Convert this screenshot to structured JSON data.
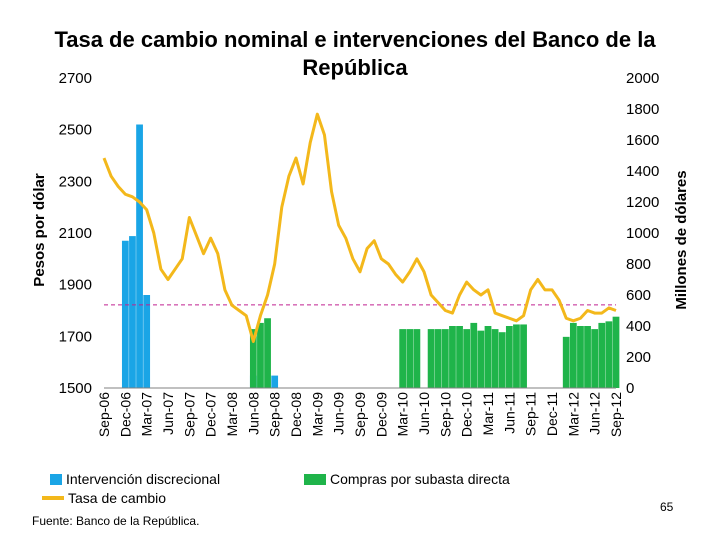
{
  "chart_data": {
    "type": "bar+line",
    "title": "Tasa de cambio nominal e intervenciones del Banco de la República",
    "ylabel_left": "Pesos por dólar",
    "ylabel_right": "Millones de dólares",
    "ylim_left": [
      1500,
      2700
    ],
    "yticks_left": [
      1500,
      1700,
      1900,
      2100,
      2300,
      2500,
      2700
    ],
    "ylim_right": [
      0,
      2000
    ],
    "yticks_right": [
      0,
      200,
      400,
      600,
      800,
      1000,
      1200,
      1400,
      1600,
      1800,
      2000
    ],
    "categories": [
      "Sep-06",
      "Dec-06",
      "Mar-07",
      "Jun-07",
      "Sep-07",
      "Dec-07",
      "Mar-08",
      "Jun-08",
      "Sep-08",
      "Dec-08",
      "Mar-09",
      "Jun-09",
      "Sep-09",
      "Dec-09",
      "Mar-10",
      "Jun-10",
      "Sep-10",
      "Dec-10",
      "Mar-11",
      "Jun-11",
      "Sep-11",
      "Dec-11",
      "Mar-12",
      "Jun-12",
      "Sep-12"
    ],
    "reference_line_left": 1822,
    "grid": false,
    "legend_position": "bottom",
    "series": [
      {
        "name": "Intervención discrecional",
        "kind": "bar",
        "axis": "right",
        "color": "#1aa5e6",
        "points": [
          [
            "2006-12-01",
            950
          ],
          [
            "2007-01-01",
            980
          ],
          [
            "2007-02-01",
            1700
          ],
          [
            "2007-03-01",
            600
          ],
          [
            "2008-06-01",
            80
          ],
          [
            "2008-09-01",
            80
          ]
        ]
      },
      {
        "name": "Compras por subasta directa",
        "kind": "bar",
        "axis": "right",
        "color": "#1fb44a",
        "points": [
          [
            "2008-06-01",
            380
          ],
          [
            "2008-07-01",
            420
          ],
          [
            "2008-08-01",
            450
          ],
          [
            "2010-03-01",
            380
          ],
          [
            "2010-04-01",
            380
          ],
          [
            "2010-05-01",
            380
          ],
          [
            "2010-07-01",
            380
          ],
          [
            "2010-08-01",
            380
          ],
          [
            "2010-09-01",
            380
          ],
          [
            "2010-10-01",
            400
          ],
          [
            "2010-11-01",
            400
          ],
          [
            "2010-12-01",
            380
          ],
          [
            "2011-01-01",
            420
          ],
          [
            "2011-02-01",
            370
          ],
          [
            "2011-03-01",
            400
          ],
          [
            "2011-04-01",
            380
          ],
          [
            "2011-05-01",
            360
          ],
          [
            "2011-06-01",
            400
          ],
          [
            "2011-07-01",
            410
          ],
          [
            "2011-08-01",
            410
          ],
          [
            "2012-02-01",
            330
          ],
          [
            "2012-03-01",
            420
          ],
          [
            "2012-04-01",
            400
          ],
          [
            "2012-05-01",
            400
          ],
          [
            "2012-06-01",
            380
          ],
          [
            "2012-07-01",
            420
          ],
          [
            "2012-08-01",
            430
          ],
          [
            "2012-09-01",
            460
          ]
        ]
      },
      {
        "name": "Tasa de cambio",
        "kind": "line",
        "axis": "left",
        "color": "#f3b81b",
        "points": [
          [
            "2006-09-01",
            2390
          ],
          [
            "2006-10-01",
            2320
          ],
          [
            "2006-11-01",
            2280
          ],
          [
            "2006-12-01",
            2250
          ],
          [
            "2007-01-01",
            2240
          ],
          [
            "2007-02-01",
            2220
          ],
          [
            "2007-03-01",
            2190
          ],
          [
            "2007-04-01",
            2100
          ],
          [
            "2007-05-01",
            1960
          ],
          [
            "2007-06-01",
            1920
          ],
          [
            "2007-07-01",
            1960
          ],
          [
            "2007-08-01",
            2000
          ],
          [
            "2007-09-01",
            2160
          ],
          [
            "2007-10-01",
            2090
          ],
          [
            "2007-11-01",
            2020
          ],
          [
            "2007-12-01",
            2080
          ],
          [
            "2008-01-01",
            2020
          ],
          [
            "2008-02-01",
            1880
          ],
          [
            "2008-03-01",
            1820
          ],
          [
            "2008-04-01",
            1800
          ],
          [
            "2008-05-01",
            1780
          ],
          [
            "2008-06-01",
            1680
          ],
          [
            "2008-07-01",
            1780
          ],
          [
            "2008-08-01",
            1860
          ],
          [
            "2008-09-01",
            1980
          ],
          [
            "2008-10-01",
            2200
          ],
          [
            "2008-11-01",
            2320
          ],
          [
            "2008-12-01",
            2390
          ],
          [
            "2009-01-01",
            2290
          ],
          [
            "2009-02-01",
            2450
          ],
          [
            "2009-03-01",
            2560
          ],
          [
            "2009-04-01",
            2480
          ],
          [
            "2009-05-01",
            2260
          ],
          [
            "2009-06-01",
            2130
          ],
          [
            "2009-07-01",
            2080
          ],
          [
            "2009-08-01",
            2000
          ],
          [
            "2009-09-01",
            1950
          ],
          [
            "2009-10-01",
            2040
          ],
          [
            "2009-11-01",
            2070
          ],
          [
            "2009-12-01",
            2000
          ],
          [
            "2010-01-01",
            1980
          ],
          [
            "2010-02-01",
            1940
          ],
          [
            "2010-03-01",
            1910
          ],
          [
            "2010-04-01",
            1950
          ],
          [
            "2010-05-01",
            2000
          ],
          [
            "2010-06-01",
            1950
          ],
          [
            "2010-07-01",
            1860
          ],
          [
            "2010-08-01",
            1830
          ],
          [
            "2010-09-01",
            1800
          ],
          [
            "2010-10-01",
            1790
          ],
          [
            "2010-11-01",
            1860
          ],
          [
            "2010-12-01",
            1910
          ],
          [
            "2011-01-01",
            1880
          ],
          [
            "2011-02-01",
            1860
          ],
          [
            "2011-03-01",
            1880
          ],
          [
            "2011-04-01",
            1790
          ],
          [
            "2011-05-01",
            1780
          ],
          [
            "2011-06-01",
            1770
          ],
          [
            "2011-07-01",
            1760
          ],
          [
            "2011-08-01",
            1780
          ],
          [
            "2011-09-01",
            1880
          ],
          [
            "2011-10-01",
            1920
          ],
          [
            "2011-11-01",
            1880
          ],
          [
            "2011-12-01",
            1880
          ],
          [
            "2012-01-01",
            1840
          ],
          [
            "2012-02-01",
            1770
          ],
          [
            "2012-03-01",
            1760
          ],
          [
            "2012-04-01",
            1770
          ],
          [
            "2012-05-01",
            1800
          ],
          [
            "2012-06-01",
            1790
          ],
          [
            "2012-07-01",
            1790
          ],
          [
            "2012-08-01",
            1810
          ],
          [
            "2012-09-01",
            1800
          ]
        ]
      }
    ]
  },
  "legend": {
    "item1": "Intervención discrecional",
    "item2": "Tasa de cambio",
    "item3": "Compras por subasta directa"
  },
  "colors": {
    "blue": "#1aa5e6",
    "green": "#1fb44a",
    "orange": "#f3b81b",
    "reference": "#c02090"
  },
  "footer": {
    "source": "Fuente: Banco de la República.",
    "page_number": "65"
  }
}
